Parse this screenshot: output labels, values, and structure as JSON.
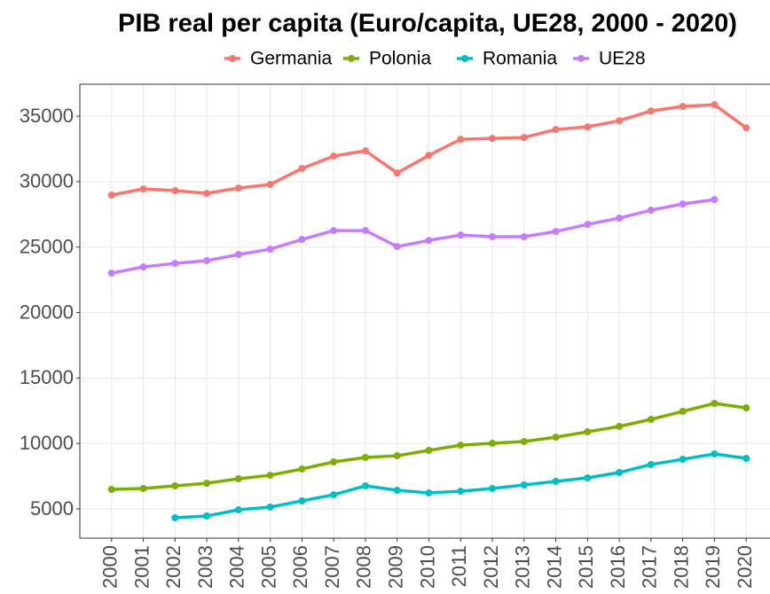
{
  "chart_data": {
    "type": "line",
    "title": "PIB real per capita (Euro/capita, UE28, 2000 - 2020)",
    "x": [
      2000,
      2001,
      2002,
      2003,
      2004,
      2005,
      2006,
      2007,
      2008,
      2009,
      2010,
      2011,
      2012,
      2013,
      2014,
      2015,
      2016,
      2017,
      2018,
      2019,
      2020
    ],
    "series": [
      {
        "name": "Germania",
        "color": "#f8766d",
        "values": [
          28970,
          29440,
          29310,
          29100,
          29510,
          29780,
          31000,
          31950,
          32350,
          30660,
          32010,
          33230,
          33300,
          33370,
          33980,
          34180,
          34650,
          35400,
          35740,
          35870,
          34110
        ]
      },
      {
        "name": "Polonia",
        "color": "#7cae00",
        "values": [
          6490,
          6560,
          6760,
          6960,
          7300,
          7570,
          8050,
          8590,
          8930,
          9060,
          9470,
          9870,
          10010,
          10150,
          10480,
          10890,
          11300,
          11840,
          12450,
          13060,
          12720
        ]
      },
      {
        "name": "Romania",
        "color": "#00bfc4",
        "values": [
          null,
          null,
          4320,
          4460,
          4930,
          5140,
          5610,
          6080,
          6760,
          6420,
          6220,
          6350,
          6560,
          6830,
          7100,
          7370,
          7780,
          8390,
          8790,
          9200,
          8860
        ]
      },
      {
        "name": "UE28",
        "color": "#c77cff",
        "values": [
          23010,
          23480,
          23750,
          23960,
          24430,
          24840,
          25580,
          26260,
          26260,
          25040,
          25510,
          25920,
          25790,
          25790,
          26190,
          26730,
          27210,
          27820,
          28290,
          28630,
          null
        ]
      }
    ],
    "xlim": [
      1999,
      2020.75
    ],
    "xticks": [
      2000,
      2001,
      2002,
      2003,
      2004,
      2005,
      2006,
      2007,
      2008,
      2009,
      2010,
      2011,
      2012,
      2013,
      2014,
      2015,
      2016,
      2017,
      2018,
      2019,
      2020
    ],
    "ylim": [
      2766,
      37440
    ],
    "yticks": [
      5000,
      10000,
      15000,
      20000,
      25000,
      30000,
      35000
    ],
    "grid": true,
    "legend": "top"
  }
}
